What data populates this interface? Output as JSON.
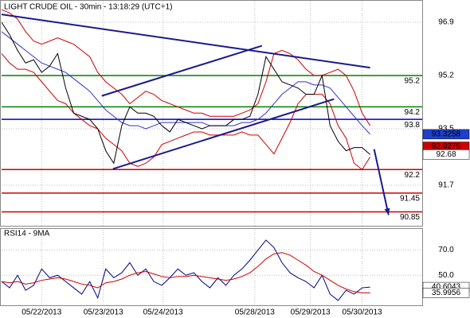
{
  "chart_data": [
    {
      "type": "line",
      "title": "LIGHT CRUDE OIL - 30min - 13:18:29 (UTC+1)",
      "xlim": [
        0,
        105
      ],
      "ylim": [
        90.38,
        97.61
      ],
      "yticks": [
        96.9,
        95.2,
        93.5,
        91.7
      ],
      "x": [
        0,
        2,
        4,
        6,
        8,
        10,
        12,
        14,
        16,
        18,
        20,
        22,
        24,
        26,
        28,
        30,
        32,
        34,
        36,
        38,
        40,
        42,
        44,
        46,
        48,
        50,
        52,
        54,
        56,
        58,
        60,
        62,
        64,
        66,
        68,
        70,
        72,
        74,
        76,
        78,
        80,
        82,
        84,
        86,
        88,
        90,
        92
      ],
      "series": [
        {
          "color": "#cc0000",
          "values": [
            97.3,
            97.2,
            97.0,
            96.6,
            96.3,
            96.2,
            96.3,
            96.4,
            96.3,
            96.2,
            96.0,
            95.8,
            95.3,
            95.0,
            94.8,
            94.6,
            94.3,
            94.5,
            94.7,
            94.6,
            94.4,
            94.3,
            94.2,
            94.1,
            94.0,
            94.0,
            93.9,
            93.9,
            93.9,
            93.9,
            94.0,
            94.1,
            94.3,
            95.0,
            95.9,
            96.0,
            95.9,
            95.7,
            95.4,
            95.2,
            95.2,
            95.3,
            95.4,
            95.2,
            94.7,
            94.0,
            93.6
          ]
        },
        {
          "color": "#cc0000",
          "values": [
            95.9,
            95.6,
            95.4,
            95.4,
            95.3,
            95.0,
            94.7,
            94.4,
            94.3,
            94.0,
            93.8,
            93.6,
            93.5,
            93.2,
            93.0,
            92.8,
            92.4,
            92.3,
            92.4,
            92.6,
            93.0,
            93.1,
            93.2,
            93.3,
            93.4,
            93.4,
            93.3,
            93.3,
            93.3,
            93.3,
            93.4,
            93.3,
            93.3,
            93.0,
            92.7,
            93.2,
            93.7,
            94.3,
            94.6,
            94.6,
            94.6,
            94.3,
            93.6,
            93.2,
            92.4,
            92.2,
            92.6
          ]
        },
        {
          "color": "#3333cc",
          "values": [
            96.6,
            96.4,
            96.2,
            96.0,
            95.8,
            95.6,
            95.5,
            95.4,
            95.3,
            95.1,
            94.9,
            94.7,
            94.4,
            94.1,
            93.9,
            93.7,
            93.6,
            93.6,
            93.5,
            93.6,
            93.7,
            93.7,
            93.7,
            93.7,
            93.7,
            93.7,
            93.6,
            93.6,
            93.6,
            93.6,
            93.7,
            93.7,
            93.8,
            94.0,
            94.3,
            94.6,
            94.8,
            95.0,
            95.0,
            94.9,
            94.9,
            94.8,
            94.5,
            94.2,
            93.9,
            93.6,
            93.3258
          ]
        },
        {
          "color": "#000000",
          "values": [
            96.9,
            96.5,
            96.0,
            95.6,
            95.7,
            95.3,
            95.5,
            95.9,
            94.8,
            94.0,
            93.9,
            93.8,
            93.5,
            92.8,
            92.4,
            93.6,
            94.2,
            94.0,
            94.0,
            93.9,
            93.6,
            93.4,
            93.8,
            93.7,
            93.6,
            93.5,
            93.6,
            93.6,
            93.6,
            93.8,
            93.8,
            93.9,
            94.6,
            95.8,
            95.4,
            95.0,
            94.9,
            94.8,
            94.6,
            94.6,
            95.2,
            93.6,
            93.1,
            92.8,
            92.9,
            92.9,
            92.68
          ]
        }
      ],
      "levels": [
        {
          "value": 95.2,
          "color": "#008000"
        },
        {
          "value": 94.2,
          "color": "#008000"
        },
        {
          "value": 93.8,
          "color": "#0000cc"
        },
        {
          "value": 92.2,
          "color": "#cc0000"
        },
        {
          "value": 91.45,
          "color": "#cc0000"
        },
        {
          "value": 90.85,
          "color": "#cc0000"
        }
      ],
      "trendlines": [
        {
          "color": "#1a1a8c",
          "x": [
            0,
            92
          ],
          "values": [
            97.15,
            95.45
          ]
        },
        {
          "color": "#1a1a8c",
          "x": [
            27.8,
            83
          ],
          "values": [
            92.22,
            94.45
          ]
        },
        {
          "color": "#1a1a8c",
          "x": [
            25,
            65
          ],
          "values": [
            94.55,
            96.15
          ]
        }
      ],
      "arrow": {
        "color": "#1a1a8c",
        "x": [
          93,
          96.6
        ],
        "values": [
          92.85,
          90.75
        ]
      },
      "tags": [
        {
          "value": 93.3258,
          "color": "#1f3fcc"
        },
        {
          "value": 92.9275,
          "color": "#cc0000"
        },
        {
          "value": 92.68,
          "color": "#ffffff"
        }
      ]
    },
    {
      "type": "line",
      "title": "RSI14 - 9MA",
      "xlim": [
        0,
        105
      ],
      "ylim": [
        25.5,
        86.8
      ],
      "yticks": [
        {
          "value": 70,
          "label": "70.0"
        },
        {
          "value": 50,
          "label": "50.0"
        }
      ],
      "xticks": [
        {
          "value": 10,
          "label": "05/22/2013"
        },
        {
          "value": 25.4,
          "label": "05/23/2013"
        },
        {
          "value": 40.3,
          "label": "05/24/2013"
        },
        {
          "value": 63.2,
          "label": "05/28/2013"
        },
        {
          "value": 77.1,
          "label": "05/29/2013"
        },
        {
          "value": 90,
          "label": "05/30/2013"
        }
      ],
      "x": [
        0,
        2,
        4,
        6,
        8,
        10,
        12,
        14,
        16,
        18,
        20,
        22,
        24,
        26,
        28,
        30,
        32,
        34,
        36,
        38,
        40,
        42,
        44,
        46,
        48,
        50,
        52,
        54,
        56,
        58,
        60,
        62,
        64,
        66,
        68,
        70,
        72,
        74,
        76,
        78,
        80,
        82,
        84,
        86,
        88,
        90,
        92
      ],
      "series": [
        {
          "color": "#000080",
          "values": [
            45,
            40,
            50,
            38,
            42,
            55,
            48,
            50,
            45,
            40,
            35,
            45,
            32,
            55,
            48,
            52,
            60,
            50,
            55,
            45,
            42,
            48,
            55,
            50,
            52,
            45,
            40,
            48,
            42,
            50,
            55,
            62,
            70,
            78,
            72,
            60,
            52,
            48,
            45,
            40,
            50,
            35,
            30,
            38,
            35,
            40,
            40.6043
          ]
        },
        {
          "color": "#cc0000",
          "values": [
            45,
            44,
            45,
            43,
            44,
            46,
            47,
            48,
            47,
            45,
            43,
            42,
            40,
            44,
            45,
            47,
            50,
            52,
            53,
            51,
            49,
            48,
            49,
            49,
            50,
            49,
            48,
            47,
            46,
            47,
            49,
            52,
            57,
            63,
            67,
            68,
            66,
            62,
            58,
            53,
            50,
            46,
            42,
            39,
            37,
            36,
            35.9956
          ]
        }
      ],
      "tags": [
        {
          "value": 40.6043,
          "color": "#ffffff"
        },
        {
          "value": 35.9956,
          "color": "#ffffff"
        }
      ]
    }
  ]
}
